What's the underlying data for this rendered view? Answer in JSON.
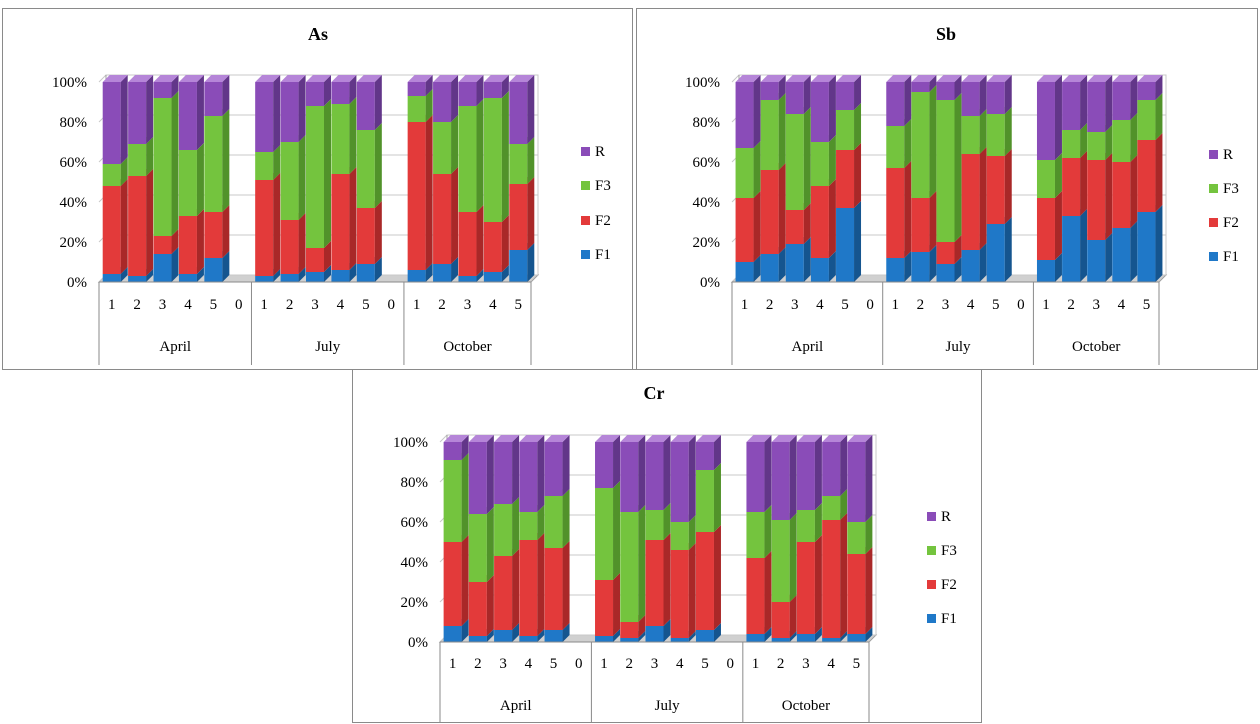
{
  "series_names": [
    "F1",
    "F2",
    "F3",
    "R"
  ],
  "series_colors": {
    "F1": {
      "front": "#1f78c8",
      "top": "#5fa8e6",
      "side": "#15558f"
    },
    "F2": {
      "front": "#e33a3a",
      "top": "#f27a7a",
      "side": "#a92828"
    },
    "F3": {
      "front": "#74c43e",
      "top": "#a8e07e",
      "side": "#51922a"
    },
    "R": {
      "front": "#8a4cb8",
      "top": "#b585d8",
      "side": "#623689"
    }
  },
  "chart_data": [
    {
      "type": "bar",
      "stacked": "percent",
      "title": "As",
      "y_ticks": [
        "0%",
        "20%",
        "40%",
        "60%",
        "80%",
        "100%"
      ],
      "ylim": [
        0,
        100
      ],
      "legend_position": "right",
      "groups": [
        {
          "label": "April",
          "categories": [
            "1",
            "2",
            "3",
            "4",
            "5",
            "0"
          ]
        },
        {
          "label": "July",
          "categories": [
            "1",
            "2",
            "3",
            "4",
            "5",
            "0"
          ]
        },
        {
          "label": "October",
          "categories": [
            "1",
            "2",
            "3",
            "4",
            "5"
          ]
        }
      ],
      "series": [
        {
          "name": "F1",
          "values": [
            4,
            3,
            14,
            4,
            12,
            0,
            3,
            4,
            5,
            6,
            9,
            0,
            6,
            9,
            3,
            5,
            16
          ]
        },
        {
          "name": "F2",
          "values": [
            44,
            50,
            9,
            29,
            23,
            0,
            48,
            27,
            12,
            48,
            28,
            0,
            74,
            45,
            32,
            25,
            33
          ]
        },
        {
          "name": "F3",
          "values": [
            11,
            16,
            69,
            33,
            48,
            0,
            14,
            39,
            71,
            35,
            39,
            0,
            13,
            26,
            53,
            62,
            20
          ]
        },
        {
          "name": "R",
          "values": [
            41,
            31,
            8,
            34,
            17,
            0,
            35,
            30,
            12,
            11,
            24,
            0,
            7,
            20,
            12,
            8,
            31
          ]
        }
      ]
    },
    {
      "type": "bar",
      "stacked": "percent",
      "title": "Sb",
      "y_ticks": [
        "0%",
        "20%",
        "40%",
        "60%",
        "80%",
        "100%"
      ],
      "ylim": [
        0,
        100
      ],
      "legend_position": "right",
      "groups": [
        {
          "label": "April",
          "categories": [
            "1",
            "2",
            "3",
            "4",
            "5",
            "0"
          ]
        },
        {
          "label": "July",
          "categories": [
            "1",
            "2",
            "3",
            "4",
            "5",
            "0"
          ]
        },
        {
          "label": "October",
          "categories": [
            "1",
            "2",
            "3",
            "4",
            "5"
          ]
        }
      ],
      "series": [
        {
          "name": "F1",
          "values": [
            10,
            14,
            19,
            12,
            37,
            0,
            12,
            15,
            9,
            16,
            29,
            0,
            11,
            33,
            21,
            27,
            35
          ]
        },
        {
          "name": "F2",
          "values": [
            32,
            42,
            17,
            36,
            29,
            0,
            45,
            27,
            11,
            48,
            34,
            0,
            31,
            29,
            40,
            33,
            36
          ]
        },
        {
          "name": "F3",
          "values": [
            25,
            35,
            48,
            22,
            20,
            0,
            21,
            53,
            71,
            19,
            21,
            0,
            19,
            14,
            14,
            21,
            20
          ]
        },
        {
          "name": "R",
          "values": [
            33,
            9,
            16,
            30,
            14,
            0,
            22,
            5,
            9,
            17,
            16,
            0,
            39,
            24,
            25,
            19,
            9
          ]
        }
      ]
    },
    {
      "type": "bar",
      "stacked": "percent",
      "title": "Cr",
      "y_ticks": [
        "0%",
        "20%",
        "40%",
        "60%",
        "80%",
        "100%"
      ],
      "ylim": [
        0,
        100
      ],
      "legend_position": "right",
      "groups": [
        {
          "label": "April",
          "categories": [
            "1",
            "2",
            "3",
            "4",
            "5",
            "0"
          ]
        },
        {
          "label": "July",
          "categories": [
            "1",
            "2",
            "3",
            "4",
            "5",
            "0"
          ]
        },
        {
          "label": "October",
          "categories": [
            "1",
            "2",
            "3",
            "4",
            "5"
          ]
        }
      ],
      "series": [
        {
          "name": "F1",
          "values": [
            8,
            3,
            6,
            3,
            6,
            0,
            3,
            2,
            8,
            2,
            6,
            0,
            4,
            2,
            4,
            2,
            4
          ]
        },
        {
          "name": "F2",
          "values": [
            42,
            27,
            37,
            48,
            41,
            0,
            28,
            8,
            43,
            44,
            49,
            0,
            38,
            18,
            46,
            59,
            40
          ]
        },
        {
          "name": "F3",
          "values": [
            41,
            34,
            26,
            14,
            26,
            0,
            46,
            55,
            15,
            14,
            31,
            0,
            23,
            41,
            16,
            12,
            16
          ]
        },
        {
          "name": "R",
          "values": [
            9,
            36,
            31,
            35,
            27,
            0,
            23,
            35,
            34,
            40,
            14,
            0,
            35,
            39,
            34,
            27,
            40
          ]
        }
      ]
    }
  ]
}
